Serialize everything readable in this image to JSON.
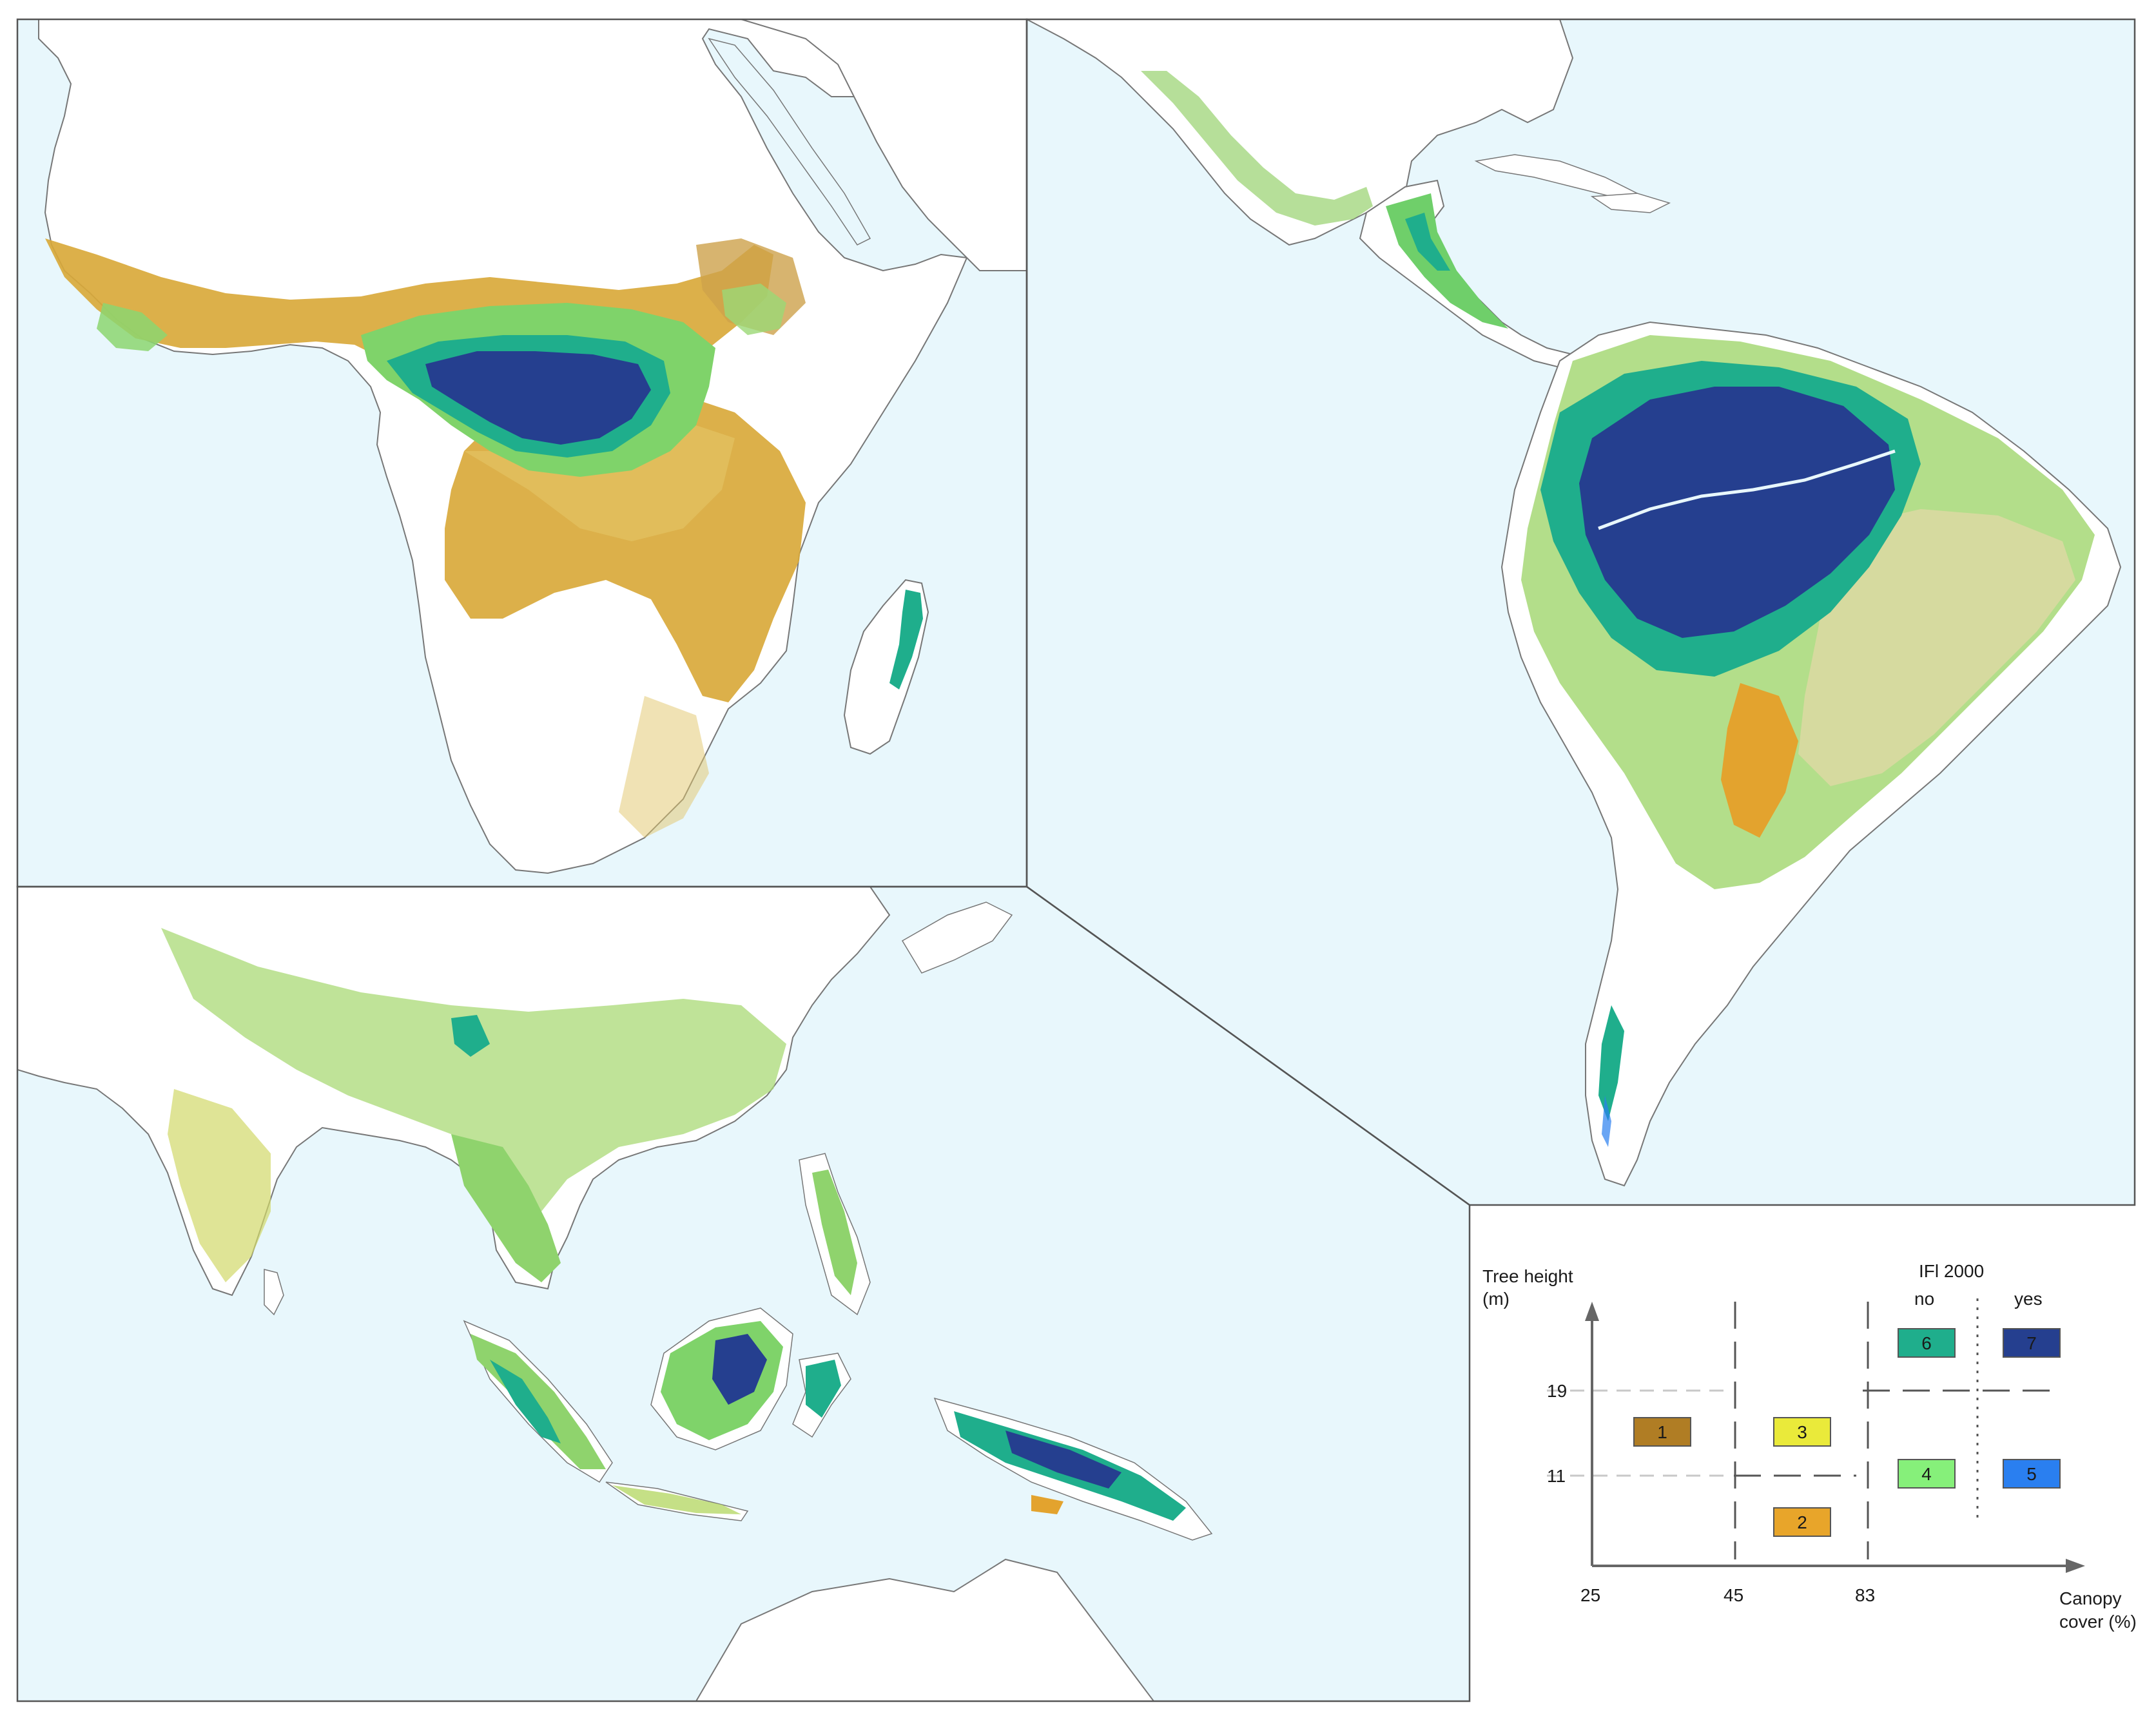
{
  "panels": [
    {
      "id": "africa",
      "region": "Africa"
    },
    {
      "id": "americas",
      "region": "Central and South America"
    },
    {
      "id": "asia",
      "region": "South and Southeast Asia, Oceania"
    }
  ],
  "legend": {
    "y_axis_label_line1": "Tree height",
    "y_axis_label_line2": "(m)",
    "x_axis_label_line1": "Canopy",
    "x_axis_label_line2": "cover (%)",
    "ifl_title": "IFl 2000",
    "ifl_no": "no",
    "ifl_yes": "yes",
    "y_ticks": [
      "19",
      "11"
    ],
    "x_ticks": [
      "25",
      "45",
      "83"
    ],
    "classes": [
      {
        "id": "1",
        "label": "1",
        "color": "#b07d24"
      },
      {
        "id": "2",
        "label": "2",
        "color": "#e8a52a"
      },
      {
        "id": "3",
        "label": "3",
        "color": "#eaea3a"
      },
      {
        "id": "4",
        "label": "4",
        "color": "#86f07a"
      },
      {
        "id": "5",
        "label": "5",
        "color": "#2a7ff0"
      },
      {
        "id": "6",
        "label": "6",
        "color": "#1fae8c"
      },
      {
        "id": "7",
        "label": "7",
        "color": "#253f8f"
      }
    ]
  },
  "colors": {
    "ocean": "#e8f7fc",
    "land": "#ffffff",
    "coast": "#777777",
    "frame": "#555555"
  }
}
